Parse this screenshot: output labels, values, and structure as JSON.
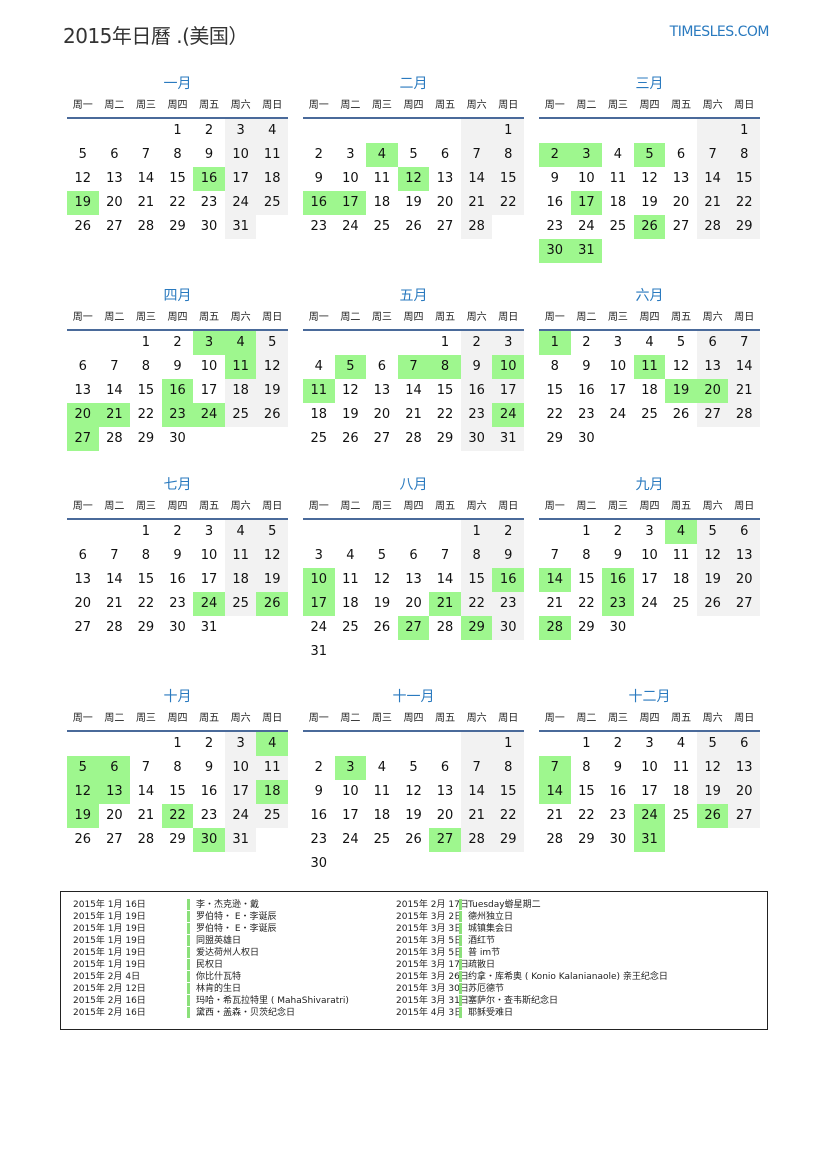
{
  "header": {
    "title": "2015年日曆 .(美国）",
    "site": "TIMESLES.COM"
  },
  "weekdays": [
    "周一",
    "周二",
    "周三",
    "周四",
    "周五",
    "周六",
    "周日"
  ],
  "colors": {
    "holiday": "#9ef78e",
    "weekend": "#f2f2f2",
    "accent": "#2a7abf"
  },
  "months": [
    {
      "name": "一月",
      "offset": 3,
      "days": 31,
      "holidays": [
        16,
        19
      ]
    },
    {
      "name": "二月",
      "offset": 6,
      "days": 28,
      "holidays": [
        4,
        12,
        16,
        17
      ]
    },
    {
      "name": "三月",
      "offset": 6,
      "days": 31,
      "holidays": [
        2,
        3,
        5,
        17,
        26,
        30,
        31
      ]
    },
    {
      "name": "四月",
      "offset": 2,
      "days": 30,
      "holidays": [
        3,
        4,
        11,
        16,
        20,
        21,
        23,
        24,
        27
      ]
    },
    {
      "name": "五月",
      "offset": 4,
      "days": 31,
      "holidays": [
        5,
        7,
        8,
        10,
        11,
        24
      ]
    },
    {
      "name": "六月",
      "offset": 0,
      "days": 30,
      "holidays": [
        1,
        11,
        19,
        20
      ]
    },
    {
      "name": "七月",
      "offset": 2,
      "days": 31,
      "holidays": [
        24,
        26
      ]
    },
    {
      "name": "八月",
      "offset": 5,
      "days": 31,
      "holidays": [
        10,
        16,
        17,
        21,
        27,
        29
      ]
    },
    {
      "name": "九月",
      "offset": 1,
      "days": 30,
      "holidays": [
        4,
        14,
        16,
        23,
        28
      ]
    },
    {
      "name": "十月",
      "offset": 3,
      "days": 31,
      "holidays": [
        4,
        5,
        6,
        12,
        13,
        18,
        19,
        22,
        30
      ]
    },
    {
      "name": "十一月",
      "offset": 6,
      "days": 30,
      "holidays": [
        3,
        27
      ]
    },
    {
      "name": "十二月",
      "offset": 1,
      "days": 31,
      "holidays": [
        7,
        14,
        24,
        26,
        31
      ]
    }
  ],
  "holiday_list": {
    "left": [
      {
        "date": "2015年 1月 16日",
        "name": "李・杰克逊・戴"
      },
      {
        "date": "2015年 1月 19日",
        "name": "罗伯特・ E・李诞辰"
      },
      {
        "date": "2015年 1月 19日",
        "name": "罗伯特・ E・李诞辰"
      },
      {
        "date": "2015年 1月 19日",
        "name": "同盟英雄日"
      },
      {
        "date": "2015年 1月 19日",
        "name": "爱达荷州人权日"
      },
      {
        "date": "2015年 1月 19日",
        "name": "民权日"
      },
      {
        "date": "2015年 2月 4日",
        "name": "你比什瓦特"
      },
      {
        "date": "2015年 2月 12日",
        "name": "林肯的生日"
      },
      {
        "date": "2015年 2月 16日",
        "name": "玛哈・希瓦拉特里 ( MahaShivaratri)"
      },
      {
        "date": "2015年 2月 16日",
        "name": "黛西・盖森・贝茨纪念日"
      }
    ],
    "right": [
      {
        "date": "2015年 2月 17日",
        "name": "Tuesday蝣星期二"
      },
      {
        "date": "2015年 3月 2日",
        "name": "德州独立日"
      },
      {
        "date": "2015年 3月 3日",
        "name": "城镇集会日"
      },
      {
        "date": "2015年 3月 5日",
        "name": "酒红节"
      },
      {
        "date": "2015年 3月 5日",
        "name": "普 im节"
      },
      {
        "date": "2015年 3月 17日",
        "name": "疏散日"
      },
      {
        "date": "2015年 3月 26日",
        "name": "约拿・库希奥 ( Konio Kalanianaole) 亲王纪念日"
      },
      {
        "date": "2015年 3月 30日",
        "name": "苏厄德节"
      },
      {
        "date": "2015年 3月 31日",
        "name": "塞萨尔・查韦斯纪念日"
      },
      {
        "date": "2015年 4月 3日",
        "name": "耶稣受难日"
      }
    ]
  }
}
